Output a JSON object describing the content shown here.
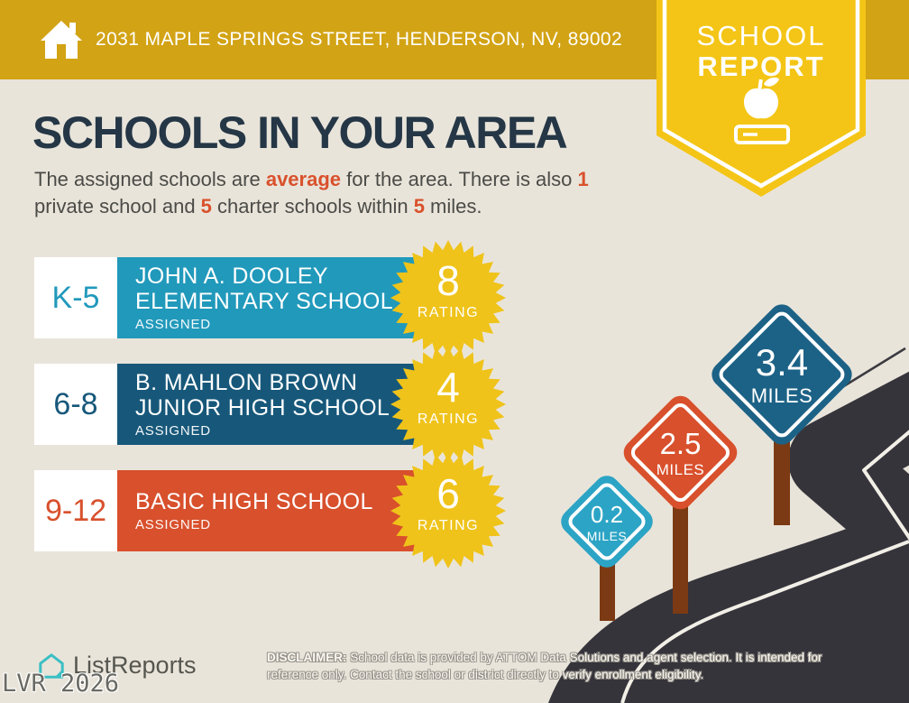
{
  "palette": {
    "background": "#E9E4DA",
    "header_gold": "#D2A315",
    "ribbon_yellow": "#F4C516",
    "title_navy": "#253746",
    "accent_orange": "#D9512C",
    "body_text": "#4B4B47",
    "starburst_yellow": "#EFC31A",
    "road_dark": "#36343B",
    "road_line_white": "#F2EFE7",
    "post_brown": "#7B3A13",
    "logo_teal": "#3BBFC4",
    "footer_text": "#55564F"
  },
  "header": {
    "address": "2031 MAPLE SPRINGS STREET, HENDERSON, NV, 89002"
  },
  "ribbon": {
    "word1": "SCHOOL",
    "word2": "REPORT"
  },
  "main": {
    "title": "SCHOOLS IN YOUR AREA",
    "subtitle": {
      "s1": "The assigned schools are ",
      "s2": "average",
      "s3": " for the area. There is also ",
      "s4": "1",
      "s5": "private school and ",
      "s6": "5",
      "s7": " charter schools within ",
      "s8": "5",
      "s9": " miles."
    }
  },
  "schools": [
    {
      "grades": "K-5",
      "name_line1": "JOHN A. DOOLEY",
      "name_line2": "ELEMENTARY SCHOOL",
      "status": "ASSIGNED",
      "rating": "8",
      "rating_label": "RATING",
      "color": "#2199BB"
    },
    {
      "grades": "6-8",
      "name_line1": "B. MAHLON BROWN",
      "name_line2": "JUNIOR HIGH SCHOOL",
      "status": "ASSIGNED",
      "rating": "4",
      "rating_label": "RATING",
      "color": "#17587A"
    },
    {
      "grades": "9-12",
      "name_line1": "BASIC HIGH SCHOOL",
      "name_line2": "",
      "status": "ASSIGNED",
      "rating": "6",
      "rating_label": "RATING",
      "color": "#D8502C"
    }
  ],
  "signs": [
    {
      "distance": "0.2",
      "unit": "MILES",
      "color": "#2CA4C5"
    },
    {
      "distance": "2.5",
      "unit": "MILES",
      "color": "#D8502C"
    },
    {
      "distance": "3.4",
      "unit": "MILES",
      "color": "#1C6286"
    }
  ],
  "footer": {
    "brand": "ListReports",
    "watermark": "LVR 2026",
    "disclaimer_label": "DISCLAIMER:",
    "disclaimer_text": " School data is provided by ATTOM Data Solutions and agent selection. It is intended for reference only. Contact the school or district directly to verify enrollment eligibility."
  }
}
